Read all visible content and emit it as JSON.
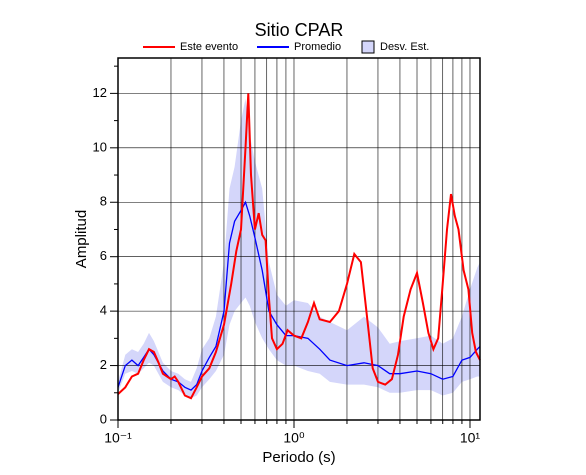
{
  "chart_data": {
    "type": "line",
    "title": "Sitio CPAR",
    "xlabel": "Periodo (s)",
    "ylabel": "Amplitud",
    "xscale": "log",
    "xlim": [
      0.1,
      11.4
    ],
    "ylim": [
      0,
      13.3
    ],
    "xticks": [
      {
        "value": 0.1,
        "label": "10⁻¹"
      },
      {
        "value": 1,
        "label": "10⁰"
      },
      {
        "value": 10,
        "label": "10¹"
      }
    ],
    "xgrid": [
      0.2,
      0.3,
      0.4,
      0.5,
      0.6,
      0.7,
      0.8,
      0.9,
      2,
      3,
      4,
      5,
      6,
      7,
      8,
      9
    ],
    "yticks": [
      0,
      2,
      4,
      6,
      8,
      10,
      12
    ],
    "yminor": [
      1,
      3,
      5,
      7,
      9,
      11,
      13
    ],
    "grid": true,
    "series": [
      {
        "name": "Este evento",
        "color": "#ff0000",
        "x": [
          0.1,
          0.11,
          0.12,
          0.13,
          0.14,
          0.15,
          0.16,
          0.17,
          0.18,
          0.2,
          0.21,
          0.22,
          0.24,
          0.26,
          0.28,
          0.3,
          0.33,
          0.36,
          0.4,
          0.44,
          0.47,
          0.5,
          0.53,
          0.55,
          0.57,
          0.6,
          0.63,
          0.66,
          0.69,
          0.72,
          0.75,
          0.8,
          0.86,
          0.92,
          1.0,
          1.1,
          1.2,
          1.3,
          1.4,
          1.6,
          1.8,
          2.0,
          2.2,
          2.4,
          2.6,
          2.8,
          3.0,
          3.3,
          3.6,
          3.9,
          4.2,
          4.6,
          5.0,
          5.4,
          5.8,
          6.2,
          6.6,
          7.0,
          7.4,
          7.8,
          8.2,
          8.6,
          9.2,
          9.8,
          10.3,
          10.8,
          11.4
        ],
        "values": [
          0.95,
          1.2,
          1.6,
          1.7,
          2.2,
          2.6,
          2.5,
          2.1,
          1.7,
          1.5,
          1.6,
          1.4,
          0.9,
          0.8,
          1.2,
          1.6,
          1.9,
          2.5,
          3.5,
          5.0,
          6.2,
          7.0,
          10.0,
          12.0,
          9.0,
          7.0,
          7.6,
          6.8,
          6.6,
          4.5,
          3.0,
          2.6,
          2.8,
          3.3,
          3.1,
          3.0,
          3.6,
          4.3,
          3.7,
          3.6,
          4.0,
          5.0,
          6.1,
          5.8,
          3.8,
          1.9,
          1.4,
          1.3,
          1.5,
          2.4,
          3.8,
          4.8,
          5.4,
          4.3,
          3.2,
          2.6,
          3.0,
          5.0,
          7.0,
          8.3,
          7.5,
          7.0,
          5.5,
          4.8,
          3.2,
          2.5,
          2.2
        ]
      },
      {
        "name": "Promedio",
        "color": "#0000ff",
        "x": [
          0.1,
          0.11,
          0.12,
          0.13,
          0.14,
          0.15,
          0.16,
          0.18,
          0.2,
          0.22,
          0.24,
          0.26,
          0.28,
          0.3,
          0.33,
          0.36,
          0.4,
          0.43,
          0.46,
          0.5,
          0.53,
          0.56,
          0.6,
          0.66,
          0.72,
          0.8,
          0.9,
          1.0,
          1.2,
          1.4,
          1.6,
          2.0,
          2.5,
          3.0,
          3.5,
          4.0,
          5.0,
          6.0,
          7.0,
          8.0,
          9.0,
          10.0,
          11.0,
          11.4
        ],
        "values": [
          1.2,
          2.0,
          2.2,
          2.0,
          2.3,
          2.6,
          2.4,
          1.8,
          1.5,
          1.4,
          1.2,
          1.1,
          1.3,
          1.8,
          2.3,
          2.7,
          4.0,
          6.5,
          7.3,
          7.7,
          8.0,
          7.5,
          6.7,
          5.5,
          4.0,
          3.5,
          3.1,
          3.1,
          3.0,
          2.6,
          2.2,
          2.0,
          2.1,
          2.0,
          1.7,
          1.7,
          1.8,
          1.7,
          1.5,
          1.6,
          2.2,
          2.3,
          2.6,
          2.7
        ]
      },
      {
        "name": "Desv. Est.",
        "color": "#d4d6fa",
        "x": [
          0.1,
          0.11,
          0.12,
          0.13,
          0.14,
          0.15,
          0.16,
          0.18,
          0.2,
          0.22,
          0.24,
          0.26,
          0.28,
          0.3,
          0.33,
          0.36,
          0.4,
          0.43,
          0.46,
          0.5,
          0.53,
          0.56,
          0.6,
          0.66,
          0.72,
          0.8,
          0.9,
          1.0,
          1.2,
          1.4,
          1.6,
          2.0,
          2.5,
          3.0,
          3.5,
          4.0,
          5.0,
          6.0,
          7.0,
          8.0,
          9.0,
          10.0,
          11.0,
          11.4
        ],
        "lower": [
          1.0,
          1.7,
          1.8,
          1.7,
          1.9,
          2.1,
          2.0,
          1.4,
          1.2,
          1.1,
          0.9,
          0.8,
          0.9,
          1.2,
          1.5,
          1.8,
          2.4,
          3.5,
          4.0,
          4.3,
          4.5,
          4.2,
          3.6,
          3.0,
          2.6,
          2.2,
          2.0,
          2.0,
          1.8,
          1.7,
          1.4,
          1.3,
          1.3,
          1.2,
          1.0,
          1.0,
          1.1,
          1.1,
          0.9,
          1.0,
          1.4,
          1.5,
          1.6,
          1.6
        ],
        "upper": [
          1.4,
          2.4,
          2.6,
          2.5,
          2.8,
          3.2,
          2.9,
          2.1,
          1.8,
          1.7,
          1.5,
          1.4,
          1.9,
          2.6,
          3.0,
          3.8,
          5.8,
          8.5,
          9.3,
          11.0,
          11.8,
          10.5,
          9.5,
          8.5,
          5.8,
          4.6,
          4.2,
          4.4,
          4.3,
          3.8,
          3.6,
          3.3,
          3.8,
          3.4,
          2.8,
          2.9,
          3.0,
          3.1,
          2.8,
          3.0,
          3.8,
          4.8,
          5.6,
          5.8
        ]
      }
    ]
  }
}
